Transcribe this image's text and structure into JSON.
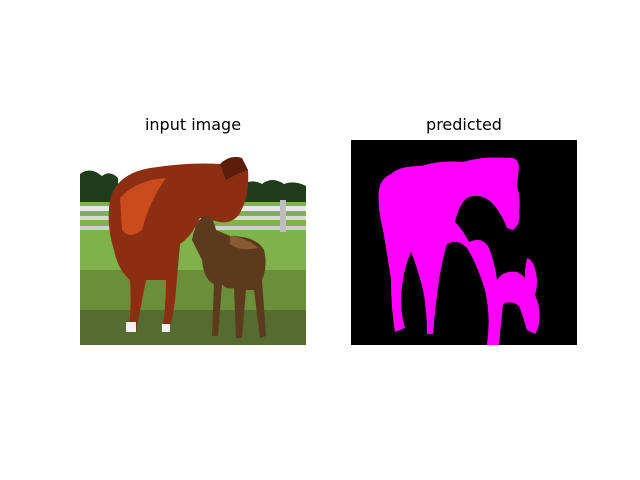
{
  "figure": {
    "panels": [
      {
        "title": "input image"
      },
      {
        "title": "predicted"
      }
    ]
  },
  "colors": {
    "mask_background": "#000000",
    "mask_foreground": "#ff00ff",
    "sky": "#ffffff",
    "grass_light": "#7fb24a",
    "grass_dark": "#556b2f",
    "horse_body": "#8b2e12",
    "horse_highlight": "#d9531e",
    "fence": "#e8e8e8",
    "trees": "#1f3d1a"
  }
}
